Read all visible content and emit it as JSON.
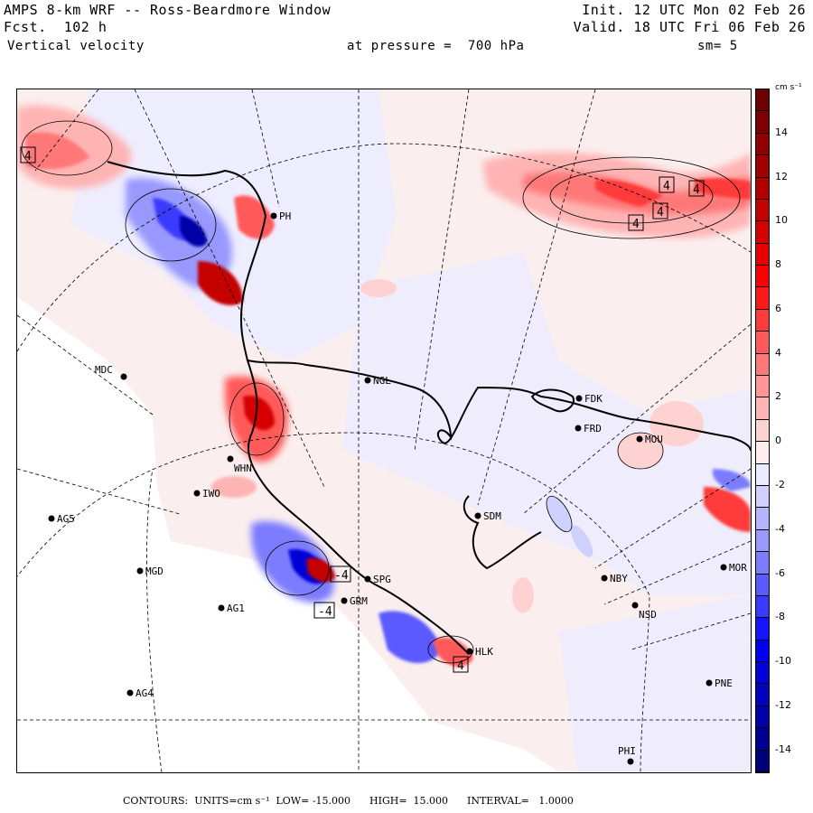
{
  "header": {
    "title": "AMPS 8-km WRF -- Ross-Beardmore Window",
    "forecast": "Fcst.  102 h",
    "field": "Vertical velocity",
    "level": "at pressure =  700 hPa",
    "init": "Init. 12 UTC Mon 02 Feb 26",
    "valid": "Valid. 18 UTC Fri 06 Feb 26",
    "smoothing": "sm= 5"
  },
  "colorbar": {
    "units": "cm s⁻¹",
    "labels": [
      "14",
      "12",
      "10",
      "8",
      "6",
      "4",
      "2",
      "0",
      "-2",
      "-4",
      "-6",
      "-8",
      "-10",
      "-12",
      "-14"
    ],
    "levels": [
      15,
      14,
      13,
      12,
      11,
      10,
      9,
      8,
      7,
      6,
      5,
      4,
      3,
      2,
      1,
      0,
      -1,
      -2,
      -3,
      -4,
      -5,
      -6,
      -7,
      -8,
      -9,
      -10,
      -11,
      -12,
      -13,
      -14,
      -15
    ],
    "colors": [
      "#6e0000",
      "#7f0000",
      "#900000",
      "#a10000",
      "#b20000",
      "#c40000",
      "#d60000",
      "#e80000",
      "#ff0000",
      "#ff1a1a",
      "#ff3a3a",
      "#ff5a5a",
      "#ff7878",
      "#ff9696",
      "#ffb4b4",
      "#ffd2d2",
      "#ffeded",
      "#ececff",
      "#d0d0ff",
      "#b4b4ff",
      "#9898ff",
      "#7c7cff",
      "#5a5aff",
      "#3a3aff",
      "#1414ff",
      "#0000f0",
      "#0000d8",
      "#0000c0",
      "#0000a8",
      "#000090",
      "#000078"
    ]
  },
  "footer": {
    "contours": "CONTOURS:  UNITS=cm s⁻¹  LOW= -15.000      HIGH=  15.000      INTERVAL=   1.0000"
  },
  "stations": [
    {
      "id": "MDC",
      "label": "MDC"
    },
    {
      "id": "NGL",
      "label": "NGL"
    },
    {
      "id": "FDK",
      "label": "FDK"
    },
    {
      "id": "FRD",
      "label": "FRD"
    },
    {
      "id": "MOU",
      "label": "MOU"
    },
    {
      "id": "IWO",
      "label": "IWO"
    },
    {
      "id": "WHN",
      "label": "WHN"
    },
    {
      "id": "AG5",
      "label": "AG5"
    },
    {
      "id": "SDM",
      "label": "SDM"
    },
    {
      "id": "MGD",
      "label": "MGD"
    },
    {
      "id": "NBY",
      "label": "NBY"
    },
    {
      "id": "AG1",
      "label": "AG1"
    },
    {
      "id": "GRM",
      "label": "GRM"
    },
    {
      "id": "SPG",
      "label": "SPG"
    },
    {
      "id": "NSD",
      "label": "NSD"
    },
    {
      "id": "HLK",
      "label": "HLK"
    },
    {
      "id": "AG4",
      "label": "AG4"
    },
    {
      "id": "PNE",
      "label": "PNE"
    },
    {
      "id": "PHI",
      "label": "PHI"
    },
    {
      "id": "PH",
      "label": "PH"
    },
    {
      "id": "MOR",
      "label": "MOR"
    }
  ],
  "extrema_markers": [
    "4",
    "4",
    "4",
    "4",
    "4",
    "-4",
    "-4",
    "4"
  ]
}
